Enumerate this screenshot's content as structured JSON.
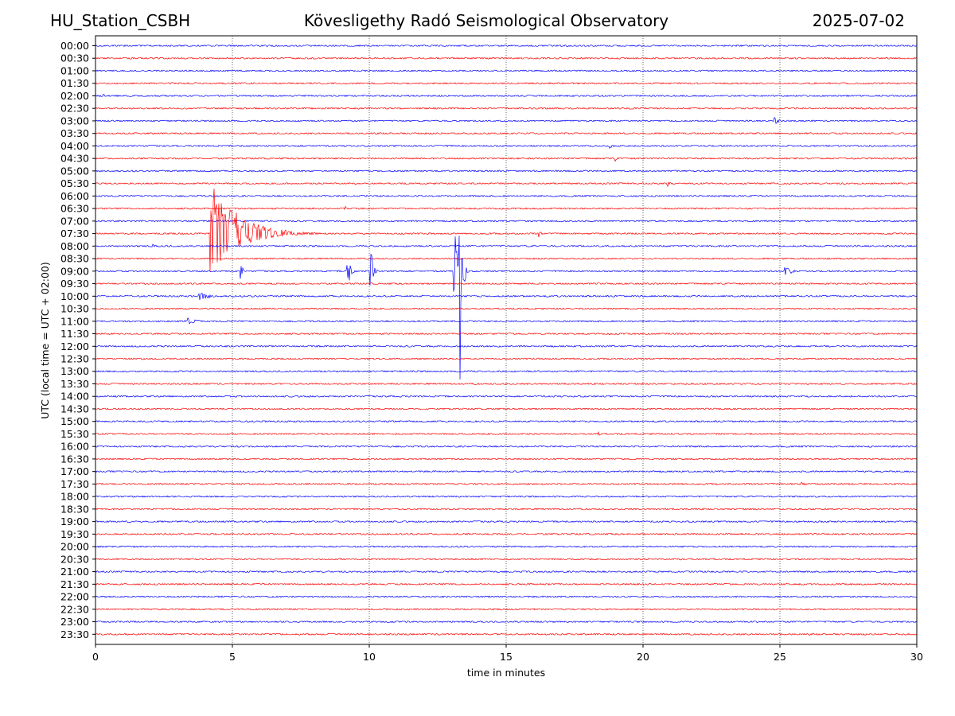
{
  "header": {
    "station": "HU_Station_CSBH",
    "observatory": "Kövesligethy Radó Seismological Observatory",
    "date": "2025-07-02"
  },
  "chart_data": {
    "type": "line",
    "xlabel": "time in minutes",
    "ylabel": "UTC (local time = UTC + 02:00)",
    "xlim": [
      0,
      30
    ],
    "xticks": [
      0,
      5,
      10,
      15,
      20,
      25,
      30
    ],
    "grid": "vertical dotted lines at each x tick",
    "trace_labels": [
      "00:00",
      "00:30",
      "01:00",
      "01:30",
      "02:00",
      "02:30",
      "03:00",
      "03:30",
      "04:00",
      "04:30",
      "05:00",
      "05:30",
      "06:00",
      "06:30",
      "07:00",
      "07:30",
      "08:00",
      "08:30",
      "09:00",
      "09:30",
      "10:00",
      "10:30",
      "11:00",
      "11:30",
      "12:00",
      "12:30",
      "13:00",
      "13:30",
      "14:00",
      "14:30",
      "15:00",
      "15:30",
      "16:00",
      "16:30",
      "17:00",
      "17:30",
      "18:00",
      "18:30",
      "19:00",
      "19:30",
      "20:00",
      "20:30",
      "21:00",
      "21:30",
      "22:00",
      "22:30",
      "23:00",
      "23:30"
    ],
    "colors": [
      "#0000ff",
      "#ff0000"
    ],
    "color_rule": "traces alternate blue / red starting with blue at 00:00",
    "events": [
      {
        "trace": "07:30",
        "start": 4.2,
        "amp_up": 4.4,
        "amp_down": 3.2,
        "coda": 4.0
      },
      {
        "trace": "09:00",
        "start": 9.2,
        "amp_up": 1.4,
        "amp_down": 1.6,
        "coda": 0.4
      },
      {
        "trace": "09:00",
        "start": 10.05,
        "amp_up": 2.8,
        "amp_down": 2.0,
        "coda": 0.3
      },
      {
        "trace": "09:00",
        "start": 13.1,
        "amp_up": 6.2,
        "amp_down": 2.2,
        "coda": 0.3
      },
      {
        "trace": "09:00",
        "start": 13.3,
        "amp_up": 9.8,
        "amp_down": 11.5,
        "coda": 0.3
      },
      {
        "trace": "09:00",
        "start": 25.2,
        "amp_up": 0.4,
        "amp_down": 0.4,
        "coda": 1.0
      },
      {
        "trace": "10:00",
        "start": 3.8,
        "amp_up": 0.35,
        "amp_down": 0.35,
        "coda": 1.5
      },
      {
        "trace": "11:00",
        "start": 3.4,
        "amp_up": 0.3,
        "amp_down": 0.3,
        "coda": 1.2
      },
      {
        "trace": "03:00",
        "start": 24.8,
        "amp_up": 0.35,
        "amp_down": 0.35,
        "coda": 0.5
      },
      {
        "trace": "08:00",
        "start": 2.1,
        "amp_up": 0.3,
        "amp_down": 0.3,
        "coda": 0.3
      },
      {
        "trace": "02:00",
        "start": 0.3,
        "amp_up": 0.3,
        "amp_down": 0.3,
        "coda": 0.2
      },
      {
        "trace": "05:30",
        "start": 20.9,
        "amp_up": 0.25,
        "amp_down": 0.25,
        "coda": 0.6
      },
      {
        "trace": "07:30",
        "start": 16.2,
        "amp_up": 0.3,
        "amp_down": 0.3,
        "coda": 0.3
      },
      {
        "trace": "15:30",
        "start": 18.4,
        "amp_up": 0.3,
        "amp_down": 0.3,
        "coda": 0.2
      },
      {
        "trace": "17:30",
        "start": 25.8,
        "amp_up": 0.25,
        "amp_down": 0.25,
        "coda": 0.4
      },
      {
        "trace": "06:30",
        "start": 9.1,
        "amp_up": 0.2,
        "amp_down": 0.2,
        "coda": 0.6
      },
      {
        "trace": "04:00",
        "start": 18.8,
        "amp_up": 0.25,
        "amp_down": 0.25,
        "coda": 0.2
      },
      {
        "trace": "04:30",
        "start": 19.0,
        "amp_up": 0.25,
        "amp_down": 0.25,
        "coda": 0.2
      },
      {
        "trace": "09:00",
        "start": 5.3,
        "amp_up": 1.2,
        "amp_down": 0.8,
        "coda": 0.15
      }
    ]
  }
}
